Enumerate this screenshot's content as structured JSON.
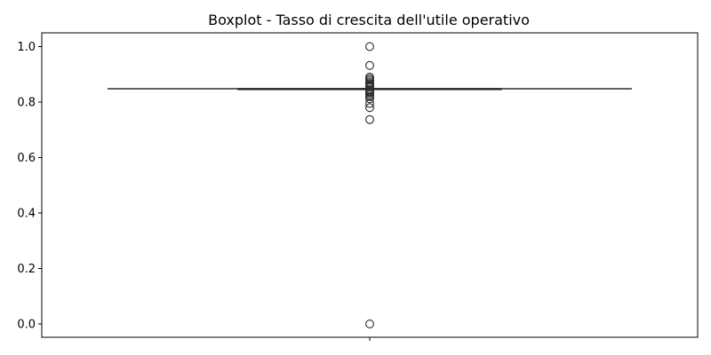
{
  "chart_data": {
    "type": "box",
    "title": "Boxplot - Tasso di crescita dell'utile operativo",
    "xlabel": "",
    "ylabel": "",
    "ylim": [
      -0.05,
      1.05
    ],
    "y_ticks": [
      "0.0",
      "0.2",
      "0.4",
      "0.6",
      "0.8",
      "1.0"
    ],
    "y_tick_values": [
      0.0,
      0.2,
      0.4,
      0.6,
      0.8,
      1.0
    ],
    "grid": false,
    "box": {
      "whisker_low": 0.848,
      "q1": 0.848,
      "median": 0.848,
      "q3": 0.848,
      "whisker_high": 0.848
    },
    "outliers": [
      1.0,
      0.932,
      0.89,
      0.884,
      0.878,
      0.872,
      0.867,
      0.862,
      0.858,
      0.854,
      0.844,
      0.84,
      0.836,
      0.832,
      0.826,
      0.82,
      0.812,
      0.795,
      0.78,
      0.737,
      0.0
    ],
    "colors": {
      "box": "#2b2b2b",
      "axis": "#000000"
    }
  }
}
